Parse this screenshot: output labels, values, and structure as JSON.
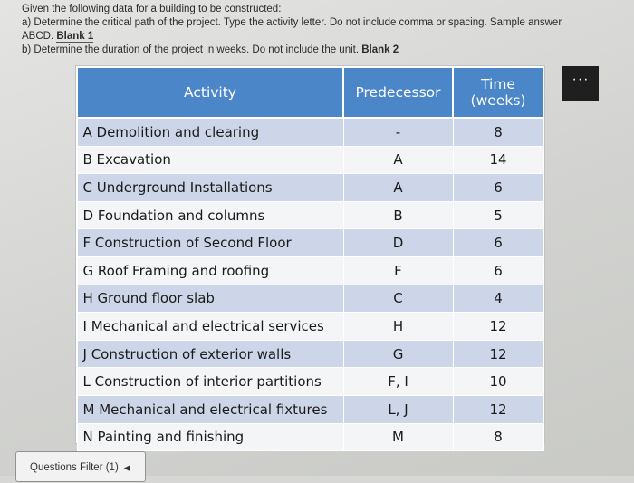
{
  "question": {
    "intro": "Given the following data for a building to be constructed:",
    "part_a": "a) Determine the critical path of the project. Type the activity letter. Do not include comma or spacing. Sample answer",
    "part_a_cont": "ABCD.",
    "blank1": "Blank 1",
    "part_b": "b) Determine the duration of the project in weeks. Do not include the unit.",
    "blank2": "Blank 2"
  },
  "table": {
    "headers": {
      "activity": "Activity",
      "predecessor": "Predecessor",
      "time_line1": "Time",
      "time_line2": "(weeks)"
    },
    "rows": [
      {
        "activity": "A Demolition  and clearing",
        "predecessor": "-",
        "time": "8"
      },
      {
        "activity": "B Excavation",
        "predecessor": "A",
        "time": "14"
      },
      {
        "activity": "C Underground Installations",
        "predecessor": "A",
        "time": "6"
      },
      {
        "activity": "D Foundation and columns",
        "predecessor": "B",
        "time": "5"
      },
      {
        "activity": "F Construction of Second Floor",
        "predecessor": "D",
        "time": "6"
      },
      {
        "activity": "G Roof Framing and roofing",
        "predecessor": "F",
        "time": "6"
      },
      {
        "activity": "H Ground floor slab",
        "predecessor": "C",
        "time": "4"
      },
      {
        "activity": "I Mechanical and electrical services",
        "predecessor": "H",
        "time": "12"
      },
      {
        "activity": "J Construction of exterior walls",
        "predecessor": "G",
        "time": "12"
      },
      {
        "activity": "L Construction of interior partitions",
        "predecessor": "F, I",
        "time": "10"
      },
      {
        "activity": "M Mechanical and electrical fixtures",
        "predecessor": "L, J",
        "time": "12"
      },
      {
        "activity": "N Painting and finishing",
        "predecessor": "M",
        "time": "8"
      }
    ]
  },
  "more_button": {
    "label": "···"
  },
  "filter": {
    "label": "Questions Filter (1)",
    "icon": "triangle-left-icon"
  }
}
